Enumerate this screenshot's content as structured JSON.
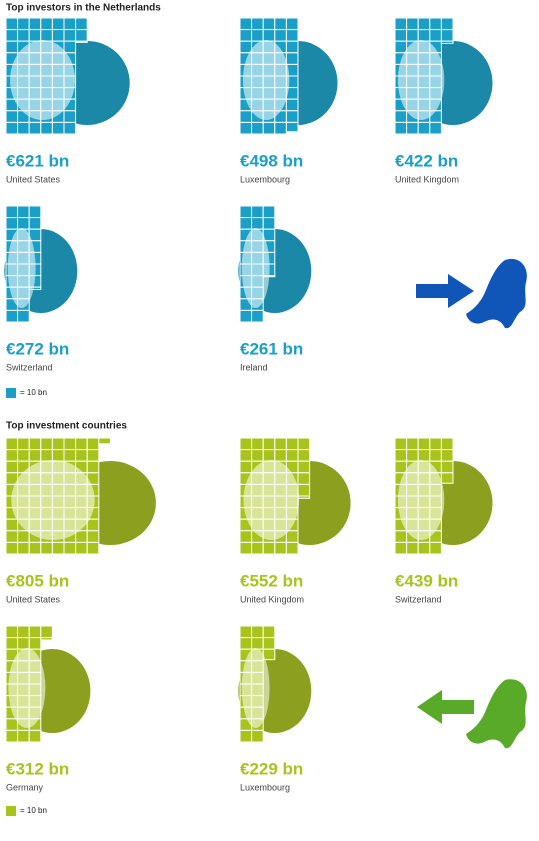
{
  "chart_data": [
    {
      "type": "pictogram",
      "title": "Top investors in the Netherlands",
      "categories": [
        "United States",
        "Luxembourg",
        "United Kingdom",
        "Switzerland",
        "Ireland"
      ],
      "values": [
        621,
        498,
        422,
        272,
        261
      ],
      "value_labels": [
        "€621 bn",
        "€498 bn",
        "€422 bn",
        "€272 bn",
        "€261 bn"
      ],
      "color": "#1a9fc8",
      "unit": 10,
      "legend_label": "= 10 bn"
    },
    {
      "type": "pictogram",
      "title": "Top investment countries",
      "categories": [
        "United States",
        "United Kingdom",
        "Switzerland",
        "Germany",
        "Luxembourg"
      ],
      "values": [
        805,
        552,
        439,
        312,
        229
      ],
      "value_labels": [
        "€805 bn",
        "€552 bn",
        "€439 bn",
        "€312 bn",
        "€229 bn"
      ],
      "color": "#a8c41c",
      "unit": 10,
      "legend_label": "= 10 bn"
    }
  ]
}
